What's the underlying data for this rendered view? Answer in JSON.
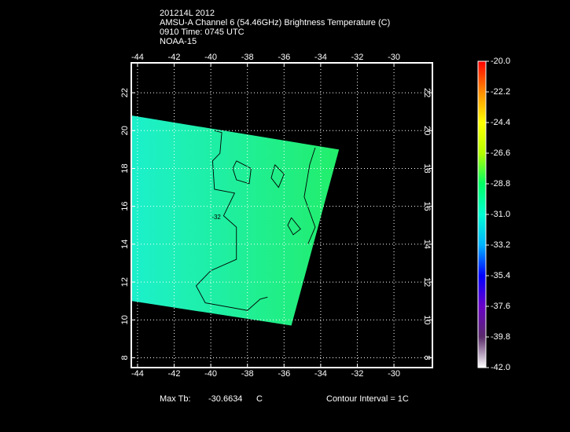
{
  "map": {
    "title_lines": [
      "201214L 2012",
      "AMSU-A Channel 6 (54.46GHz) Brightness Temperature (C)",
      "0910 Time: 0745 UTC",
      "NOAA-15"
    ],
    "xlim": [
      -44.34,
      -27.9
    ],
    "ylim": [
      7.48,
      23.58
    ],
    "xticks": [
      -44,
      -42,
      -40,
      -38,
      -36,
      -34,
      -32,
      -30
    ],
    "yticks": [
      8,
      10,
      12,
      14,
      16,
      18,
      20,
      22
    ],
    "grid": true,
    "swath": {
      "lon": [
        -44.34,
        -33.0,
        -35.6,
        -44.34
      ],
      "lat": [
        20.8,
        19.0,
        9.7,
        11.0
      ],
      "colors": [
        "#1cf0cc",
        "#22ee6a"
      ]
    },
    "contours": [
      {
        "lon": [
          -39.8,
          -39.4,
          -39.5,
          -39.9,
          -39.8,
          -38.7,
          -39.3,
          -38.6,
          -38.6,
          -40.0,
          -40.8,
          -40.3,
          -38.0,
          -37.3,
          -36.9
        ],
        "lat": [
          20.0,
          19.9,
          18.8,
          18.4,
          16.9,
          16.7,
          15.5,
          14.9,
          13.2,
          12.6,
          11.8,
          10.9,
          10.5,
          11.1,
          11.2
        ]
      },
      {
        "lon": [
          -34.3,
          -34.6,
          -34.9,
          -34.3,
          -34.7
        ],
        "lat": [
          19.1,
          18.2,
          16.5,
          14.9,
          14.0
        ]
      },
      {
        "lon": [
          -38.6,
          -37.8,
          -37.9,
          -38.6,
          -38.8,
          -38.6
        ],
        "lat": [
          18.4,
          18.0,
          17.2,
          17.4,
          18.0,
          18.4
        ]
      },
      {
        "lon": [
          -36.5,
          -36.0,
          -36.3,
          -36.7,
          -36.5
        ],
        "lat": [
          18.2,
          17.7,
          17.0,
          17.5,
          18.2
        ]
      },
      {
        "lon": [
          -35.6,
          -35.1,
          -35.5,
          -35.8,
          -35.6
        ],
        "lat": [
          15.4,
          14.8,
          14.5,
          15.0,
          15.4
        ]
      }
    ],
    "contour_labels": [
      {
        "value": -32,
        "lon": -39.7,
        "lat": 15.4
      }
    ],
    "colorbar": {
      "range": [
        -42,
        -20
      ],
      "colors": [
        "#ffffff",
        "#5a2a6a",
        "#6a00c8",
        "#0000ff",
        "#00b4ff",
        "#00ffd2",
        "#00ff64",
        "#b4ff00",
        "#ffff00",
        "#ff8c00",
        "#ff0000"
      ],
      "ticks": [
        {
          "value": -20,
          "label": "-20.0"
        },
        {
          "value": -22.2,
          "label": "-22.2"
        },
        {
          "value": -24.4,
          "label": "-24.4"
        },
        {
          "value": -26.6,
          "label": "-26.6"
        },
        {
          "value": -28.8,
          "label": "-28.8"
        },
        {
          "value": -31,
          "label": "-31.0"
        },
        {
          "value": -33.2,
          "label": "-33.2"
        },
        {
          "value": -35.4,
          "label": "-35.4"
        },
        {
          "value": -37.6,
          "label": "-37.6"
        },
        {
          "value": -39.8,
          "label": "-39.8"
        },
        {
          "value": -42,
          "label": "-42.0"
        }
      ]
    }
  },
  "footer": {
    "max_label": "Max Tb:",
    "max_value": "-30.6634",
    "max_unit": "C",
    "contour_interval": "Contour Interval = 1C"
  }
}
